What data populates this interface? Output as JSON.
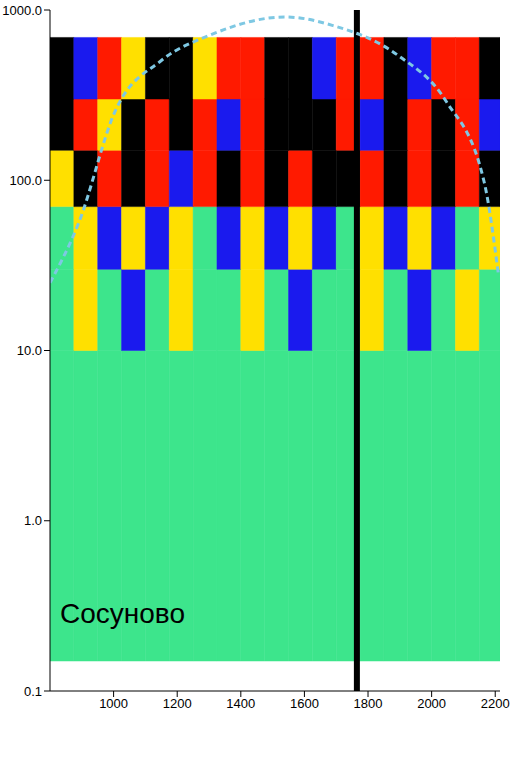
{
  "chart_data": {
    "type": "heatmap",
    "annotation": "Сосуново",
    "log": "y",
    "grid": false,
    "xlim": [
      800,
      2215
    ],
    "xticks": [
      1000,
      1200,
      1400,
      1600,
      1800,
      2000,
      2200
    ],
    "ylim": [
      0.1,
      1000
    ],
    "yticks": [
      0.1,
      {
        "value": 1,
        "label": "1.0"
      },
      {
        "value": 10,
        "label": "10.0"
      },
      {
        "value": 100,
        "label": "100.0"
      },
      {
        "value": 1000,
        "label": "1000.0"
      }
    ],
    "x_edges": [
      800,
      875,
      950,
      1025,
      1100,
      1175,
      1250,
      1325,
      1400,
      1475,
      1550,
      1625,
      1700,
      1775,
      1850,
      1925,
      2000,
      2075,
      2150,
      2215
    ],
    "y_edges": [
      0.15,
      10,
      30,
      70,
      150,
      300,
      690
    ],
    "cells": [
      [
        0,
        0,
        0,
        0,
        0,
        0,
        0,
        0,
        0,
        0,
        0,
        0,
        0,
        0,
        0,
        0,
        0,
        0,
        0
      ],
      [
        0,
        1,
        0,
        -1,
        0,
        1,
        0,
        0,
        1,
        0,
        -1,
        0,
        0,
        1,
        0,
        -1,
        0,
        1,
        0
      ],
      [
        0,
        1,
        -1,
        1,
        -1,
        1,
        0,
        -1,
        1,
        -1,
        1,
        -1,
        0,
        1,
        -1,
        1,
        -1,
        0,
        1
      ],
      [
        1,
        -2,
        2,
        -2,
        2,
        -1,
        2,
        -2,
        2,
        -2,
        2,
        -2,
        -2,
        2,
        -2,
        2,
        -2,
        2,
        -2
      ],
      [
        -2,
        2,
        1,
        -2,
        2,
        -2,
        2,
        -1,
        2,
        -2,
        -2,
        -2,
        2,
        -1,
        -2,
        2,
        -2,
        2,
        -1
      ],
      [
        -2,
        -1,
        2,
        1,
        -2,
        -2,
        1,
        2,
        2,
        -2,
        -2,
        -1,
        2,
        2,
        -2,
        -1,
        2,
        2,
        -2
      ]
    ],
    "color_scale": {
      "levels": [
        -2,
        -1,
        0,
        1,
        2
      ],
      "colors": [
        "#000000",
        "#1a1aee",
        "#3de58c",
        "#ffe000",
        "#ff1a00"
      ]
    },
    "cone_of_influence": {
      "x": [
        800,
        890,
        1005,
        1150,
        1300,
        1540,
        1690,
        1895,
        2045,
        2165,
        2210
      ],
      "y": [
        25,
        56,
        255,
        505,
        708,
        910,
        810,
        540,
        292,
        98,
        28
      ],
      "color": "#7ec8e3",
      "line_style": "dashed"
    },
    "vertical_line": {
      "x": 1765,
      "color": "#000000"
    }
  }
}
